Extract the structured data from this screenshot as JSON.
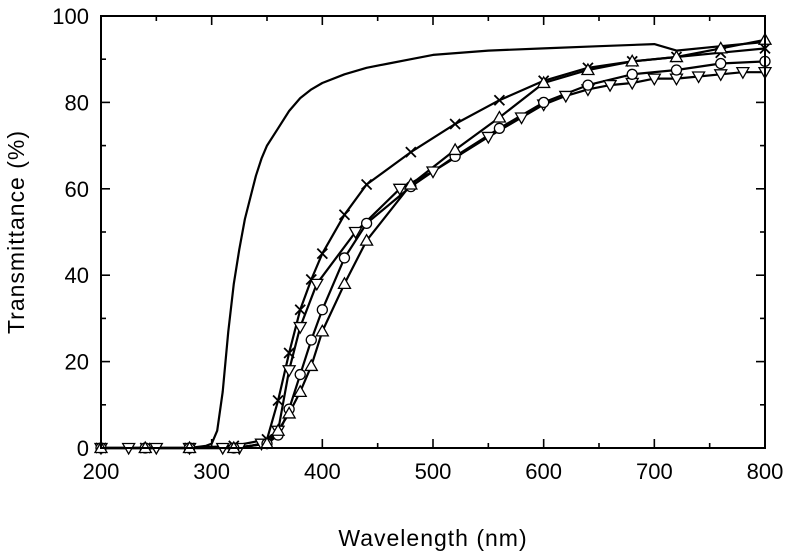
{
  "chart_data": {
    "type": "line",
    "title": "",
    "xlabel": "Wavelength (nm)",
    "ylabel": "Transmittance (%)",
    "xlim": [
      200,
      800
    ],
    "ylim": [
      0,
      100
    ],
    "x_ticks": [
      200,
      300,
      400,
      500,
      600,
      700,
      800
    ],
    "y_ticks": [
      0,
      20,
      40,
      60,
      80,
      100
    ],
    "grid": false,
    "legend": "none",
    "series": [
      {
        "marker": "none",
        "x": [
          200,
          280,
          295,
          300,
          305,
          310,
          315,
          320,
          325,
          330,
          335,
          340,
          345,
          350,
          360,
          370,
          380,
          390,
          400,
          420,
          440,
          460,
          480,
          500,
          550,
          600,
          650,
          700,
          720,
          760,
          800
        ],
        "y": [
          0,
          0,
          0.5,
          1,
          4,
          13,
          27,
          38,
          46,
          53,
          58,
          63,
          67,
          70,
          74,
          78,
          81,
          83,
          84.5,
          86.5,
          88,
          89,
          90,
          91,
          92,
          92.5,
          93,
          93.5,
          92,
          93,
          94
        ]
      },
      {
        "marker": "x",
        "x": [
          200,
          240,
          280,
          320,
          350,
          360,
          370,
          380,
          390,
          400,
          420,
          440,
          480,
          520,
          560,
          600,
          640,
          680,
          720,
          760,
          800
        ],
        "y": [
          0,
          0,
          0,
          0.5,
          2,
          11,
          22,
          32,
          39,
          45,
          54,
          61,
          68.5,
          75,
          80.5,
          85,
          88,
          89.5,
          90.5,
          91.5,
          92.5
        ]
      },
      {
        "marker": "triangle-down",
        "x": [
          200,
          225,
          250,
          280,
          310,
          325,
          345,
          360,
          370,
          380,
          395,
          430,
          470,
          500,
          550,
          580,
          600,
          620,
          640,
          660,
          680,
          700,
          720,
          740,
          760,
          780,
          800
        ],
        "y": [
          0,
          0,
          0,
          0,
          0,
          0,
          1,
          4,
          18,
          28,
          38,
          50,
          60,
          64,
          72,
          76.5,
          79.5,
          81.5,
          83,
          84,
          84.5,
          85.5,
          85.5,
          86,
          86.5,
          87,
          87
        ]
      },
      {
        "marker": "circle",
        "x": [
          200,
          240,
          280,
          320,
          350,
          360,
          370,
          380,
          390,
          400,
          420,
          440,
          480,
          520,
          560,
          600,
          640,
          680,
          720,
          760,
          800
        ],
        "y": [
          0,
          0,
          0,
          0,
          1,
          3,
          9,
          17,
          25,
          32,
          44,
          52,
          60.5,
          67.5,
          74,
          80,
          84,
          86.5,
          87.5,
          89,
          89.5
        ]
      },
      {
        "marker": "triangle-up",
        "x": [
          200,
          240,
          280,
          320,
          350,
          360,
          370,
          380,
          390,
          400,
          420,
          440,
          480,
          520,
          560,
          600,
          640,
          680,
          720,
          760,
          800
        ],
        "y": [
          0,
          0,
          0,
          0,
          1,
          4,
          8,
          13,
          19,
          27,
          38,
          48,
          61,
          69,
          76.5,
          84.5,
          87.5,
          89.5,
          90.5,
          92.5,
          94.5
        ]
      }
    ]
  }
}
